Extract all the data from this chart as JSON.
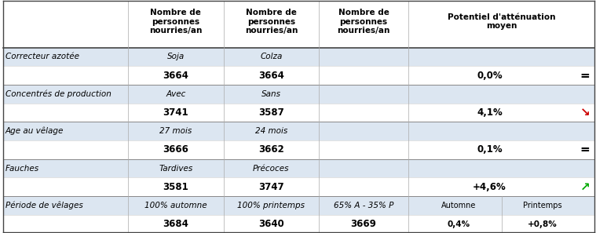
{
  "header_col1": "Nombre de\npersonnes\nnourries/an",
  "header_col4": "Potentiel d'atténuation\nmoyen",
  "rows": [
    {
      "label": "Correcteur azotée",
      "sub1": "Soja",
      "sub2": "Colza",
      "sub3": "",
      "val1": "3664",
      "val2": "3664",
      "val3": "",
      "pot": "0,0%",
      "symbol": "=",
      "symbol_color": "#000000"
    },
    {
      "label": "Concentrés de production",
      "sub1": "Avec",
      "sub2": "Sans",
      "sub3": "",
      "val1": "3741",
      "val2": "3587",
      "val3": "",
      "pot": "4,1%",
      "symbol": "↘",
      "symbol_color": "#cc0000"
    },
    {
      "label": "Age au vêlage",
      "sub1": "27 mois",
      "sub2": "24 mois",
      "sub3": "",
      "val1": "3666",
      "val2": "3662",
      "val3": "",
      "pot": "0,1%",
      "symbol": "=",
      "symbol_color": "#000000"
    },
    {
      "label": "Fauches",
      "sub1": "Tardives",
      "sub2": "Précoces",
      "sub3": "",
      "val1": "3581",
      "val2": "3747",
      "val3": "",
      "pot": "+4,6%",
      "symbol": "↗",
      "symbol_color": "#00aa00"
    },
    {
      "label": "Période de vêlages",
      "sub1": "100% automne",
      "sub2": "100% printemps",
      "sub3": "65% A - 35% P",
      "val1": "3684",
      "val2": "3640",
      "val3": "3669",
      "pot_automne": "0,4%",
      "pot_printemps": "+0,8%",
      "symbol": "",
      "symbol_color": "#000000"
    }
  ],
  "row_label_bg": "#dce6f1",
  "row_value_bg": "#ffffff",
  "label_fontsize": 7.5,
  "header_fontsize": 7.5,
  "value_fontsize": 8.5,
  "sub_fontsize": 7.5,
  "symbol_fontsize": 11
}
